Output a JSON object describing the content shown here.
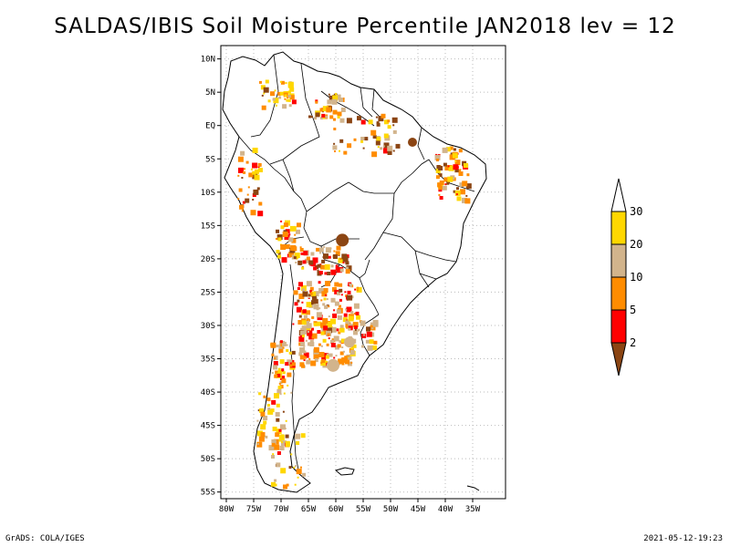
{
  "title": "SALDAS/IBIS Soil Moisture Percentile JAN2018 lev = 12",
  "footer": {
    "left": "GrADS: COLA/IGES",
    "right": "2021-05-12-19:23"
  },
  "map": {
    "lon_range": [
      -81,
      -29
    ],
    "lat_range": [
      -56,
      12
    ],
    "lon_ticks": [
      {
        "value": -80,
        "label": "80W"
      },
      {
        "value": -75,
        "label": "75W"
      },
      {
        "value": -70,
        "label": "70W"
      },
      {
        "value": -65,
        "label": "65W"
      },
      {
        "value": -60,
        "label": "60W"
      },
      {
        "value": -55,
        "label": "55W"
      },
      {
        "value": -50,
        "label": "50W"
      },
      {
        "value": -45,
        "label": "45W"
      },
      {
        "value": -40,
        "label": "40W"
      },
      {
        "value": -35,
        "label": "35W"
      }
    ],
    "lat_ticks": [
      {
        "value": 10,
        "label": "10N"
      },
      {
        "value": 5,
        "label": "5N"
      },
      {
        "value": 0,
        "label": "EQ"
      },
      {
        "value": -5,
        "label": "5S"
      },
      {
        "value": -10,
        "label": "10S"
      },
      {
        "value": -15,
        "label": "15S"
      },
      {
        "value": -20,
        "label": "20S"
      },
      {
        "value": -25,
        "label": "25S"
      },
      {
        "value": -30,
        "label": "30S"
      },
      {
        "value": -35,
        "label": "35S"
      },
      {
        "value": -40,
        "label": "40S"
      },
      {
        "value": -45,
        "label": "45S"
      },
      {
        "value": -50,
        "label": "50S"
      },
      {
        "value": -55,
        "label": "55S"
      }
    ],
    "grid": true
  },
  "colorbar": {
    "colors": [
      "#8b4513",
      "#ff0000",
      "#ff8c00",
      "#d2b48c",
      "#ffd700",
      "#ffffff"
    ],
    "labels": [
      "2",
      "5",
      "10",
      "20",
      "30"
    ]
  }
}
